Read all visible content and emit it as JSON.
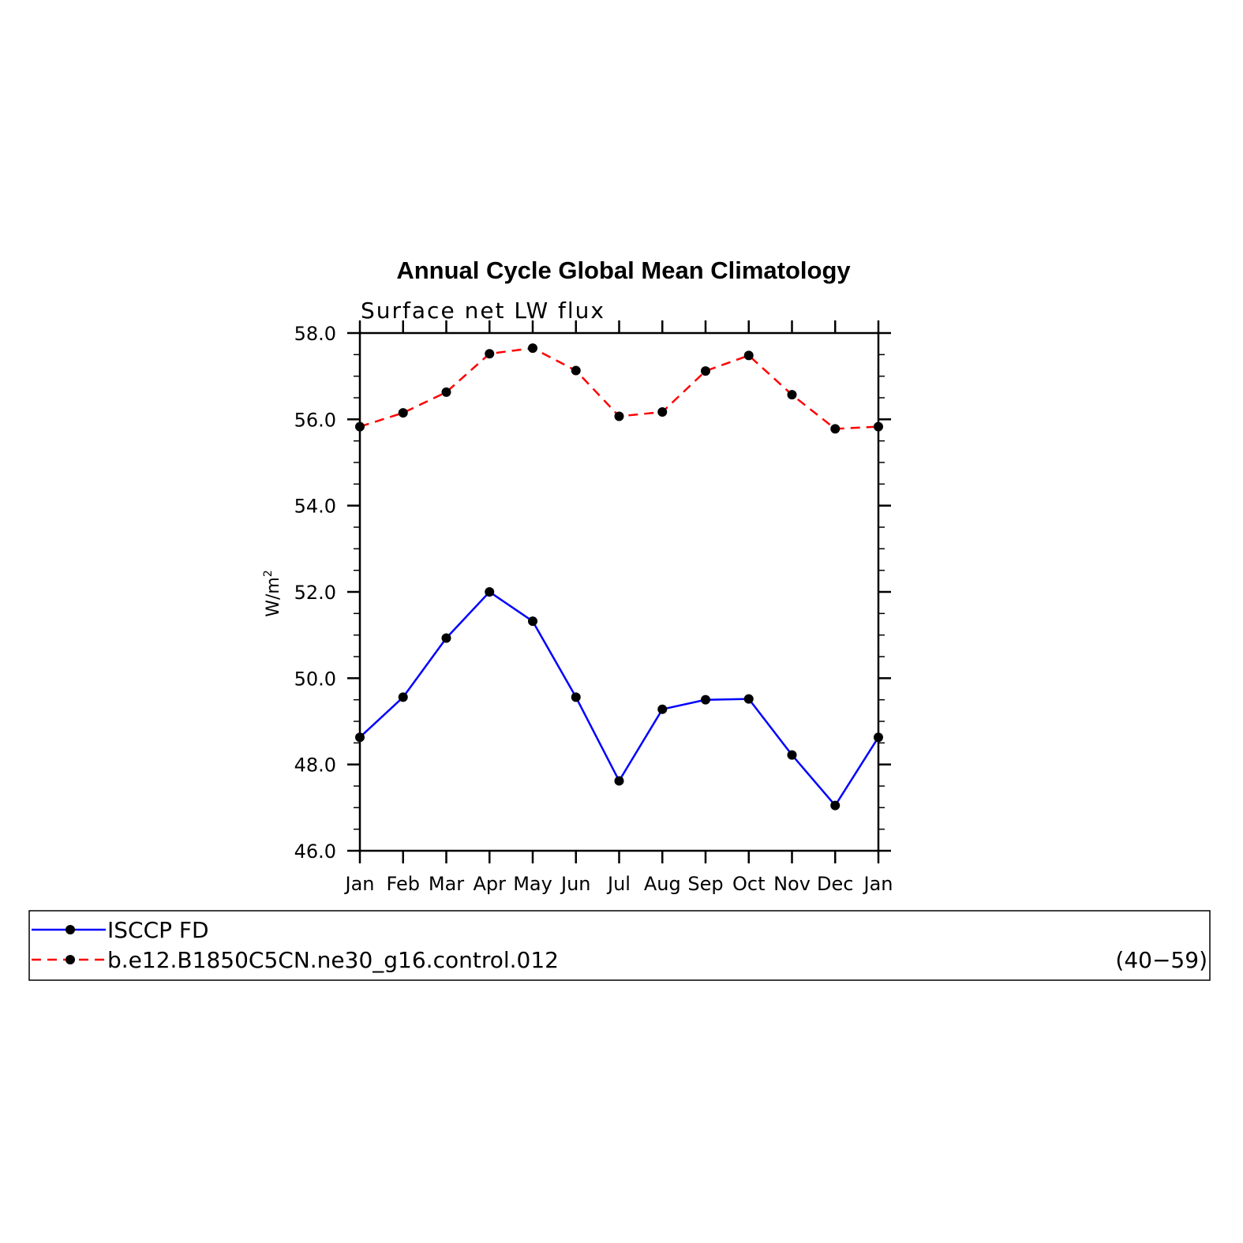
{
  "chart_data": {
    "type": "line",
    "title": "Annual Cycle Global Mean Climatology",
    "subtitle": "Surface net LW flux",
    "xlabel": "",
    "ylabel": "W/m",
    "ylabel_superscript": "2",
    "categories": [
      "Jan",
      "Feb",
      "Mar",
      "Apr",
      "May",
      "Jun",
      "Jul",
      "Aug",
      "Sep",
      "Oct",
      "Nov",
      "Dec",
      "Jan"
    ],
    "ylim": [
      46.0,
      58.0
    ],
    "yticks": [
      "46.0",
      "48.0",
      "50.0",
      "52.0",
      "54.0",
      "56.0",
      "58.0"
    ],
    "grid": false,
    "legend_position": "bottom",
    "series": [
      {
        "name": "ISCCP FD",
        "color": "#0000ff",
        "style": "solid",
        "marker": "filled-circle",
        "values": [
          48.63,
          49.56,
          50.93,
          52.0,
          51.32,
          49.56,
          47.62,
          49.28,
          49.5,
          49.52,
          48.22,
          47.05,
          48.63
        ]
      },
      {
        "name": "b.e12.B1850C5CN.ne30_g16.control.012",
        "color": "#ff0000",
        "style": "dashed",
        "marker": "filled-circle",
        "values": [
          55.83,
          56.15,
          56.63,
          57.52,
          57.65,
          57.13,
          56.07,
          56.17,
          57.12,
          57.48,
          56.57,
          55.78,
          55.83
        ]
      }
    ],
    "legend_note": "(40−59)"
  }
}
